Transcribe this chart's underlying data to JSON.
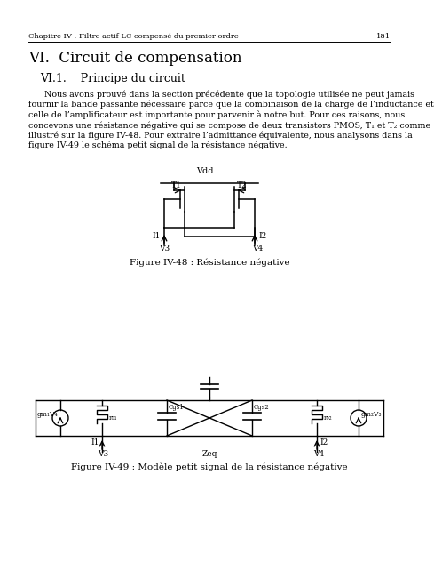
{
  "bg_color": "#ffffff",
  "header_text": "Chapitre IV : Filtre actif LC compensé du premier ordre",
  "header_page": "181",
  "title_h1": "VI.  Circuit de compensation",
  "title_h2": "VI.1.    Principe du circuit",
  "para_lines": [
    "      Nous avons prouvé dans la section précédente que la topologie utilisée ne peut jamais",
    "fournir la bande passante nécessaire parce que la combinaison de la charge de l’inductance et",
    "celle de l’amplificateur est importante pour parvenir à notre but. Pour ces raisons, nous",
    "concevons une résistance négative qui se compose de deux transistors PMOS, T₁ et T₂ comme",
    "illustré sur la figure IV-48. Pour extraire l’admittance équivalente, nous analysons dans la",
    "figure IV-49 le schéma petit signal de la résistance négative."
  ],
  "fig1_caption": "Figure IV-48 : Résistance négative",
  "fig2_caption": "Figure IV-49 : Modèle petit signal de la résistance négative",
  "text_color": "#000000",
  "line_color": "#000000"
}
